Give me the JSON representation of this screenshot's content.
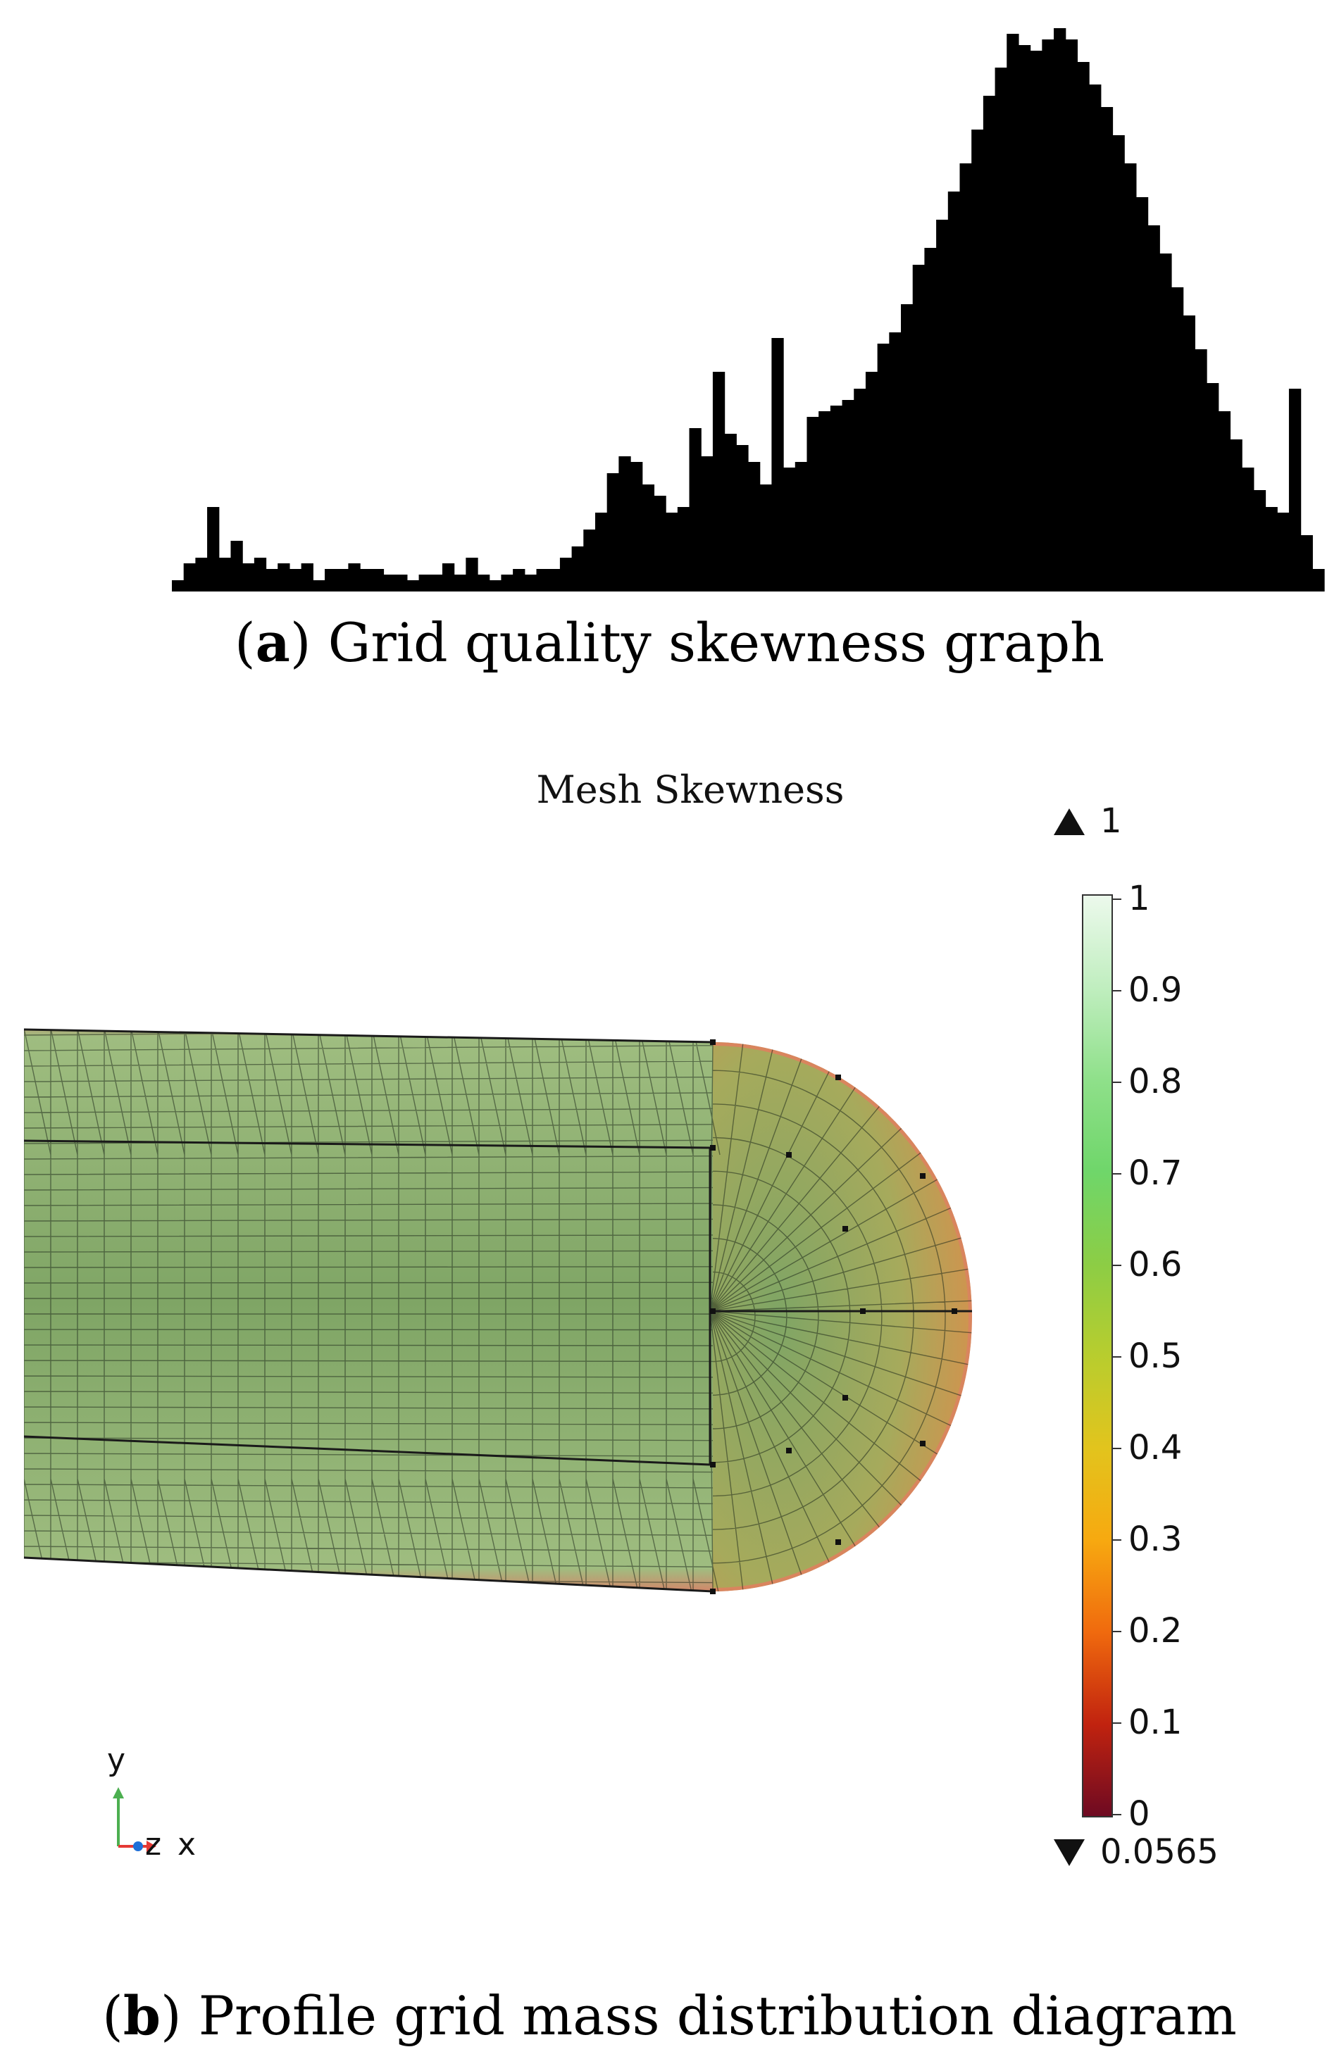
{
  "chart_data": [
    {
      "type": "bar",
      "title": "",
      "xlabel": "",
      "ylabel": "",
      "grid": false,
      "color": "#000000",
      "values": [
        0.02,
        0.05,
        0.06,
        0.15,
        0.06,
        0.09,
        0.05,
        0.06,
        0.04,
        0.05,
        0.04,
        0.05,
        0.02,
        0.04,
        0.04,
        0.05,
        0.04,
        0.04,
        0.03,
        0.03,
        0.02,
        0.03,
        0.03,
        0.05,
        0.03,
        0.06,
        0.03,
        0.02,
        0.03,
        0.04,
        0.03,
        0.04,
        0.04,
        0.06,
        0.08,
        0.11,
        0.14,
        0.21,
        0.24,
        0.23,
        0.19,
        0.17,
        0.14,
        0.15,
        0.29,
        0.24,
        0.39,
        0.28,
        0.26,
        0.23,
        0.19,
        0.45,
        0.22,
        0.23,
        0.31,
        0.32,
        0.33,
        0.34,
        0.36,
        0.39,
        0.44,
        0.46,
        0.51,
        0.58,
        0.61,
        0.66,
        0.71,
        0.76,
        0.82,
        0.88,
        0.93,
        0.99,
        0.97,
        0.96,
        0.98,
        1.0,
        0.98,
        0.94,
        0.9,
        0.86,
        0.81,
        0.76,
        0.7,
        0.65,
        0.6,
        0.54,
        0.49,
        0.43,
        0.37,
        0.32,
        0.27,
        0.22,
        0.18,
        0.15,
        0.14,
        0.36,
        0.1,
        0.04
      ]
    },
    {
      "type": "heatmap",
      "title": "Mesh Skewness",
      "colorbar_ticks": [
        "0",
        "0.1",
        "0.2",
        "0.3",
        "0.4",
        "0.5",
        "0.6",
        "0.7",
        "0.8",
        "0.9",
        "1"
      ],
      "colorbar_range": [
        0,
        1
      ],
      "max_value": "1",
      "min_value": "0.0565",
      "colors": [
        "#6e0a22",
        "#c1230f",
        "#f06a0e",
        "#f7a910",
        "#e2c41d",
        "#b8cd2e",
        "#8ccd45",
        "#6fd66a",
        "#8fe08a",
        "#c0eebf",
        "#ecf9ec"
      ]
    }
  ],
  "captions": {
    "a_letter": "a",
    "a_text": " Grid quality skewness graph",
    "b_letter": "b",
    "b_text": " Profile grid mass distribution diagram"
  },
  "axes_triad": {
    "y": "y",
    "z": "z",
    "x": "x"
  },
  "mesh_colors": {
    "edge": "#1f2a1c",
    "fill": "#8fb276",
    "rim": "#d98468",
    "cap": "#c9a24b"
  }
}
